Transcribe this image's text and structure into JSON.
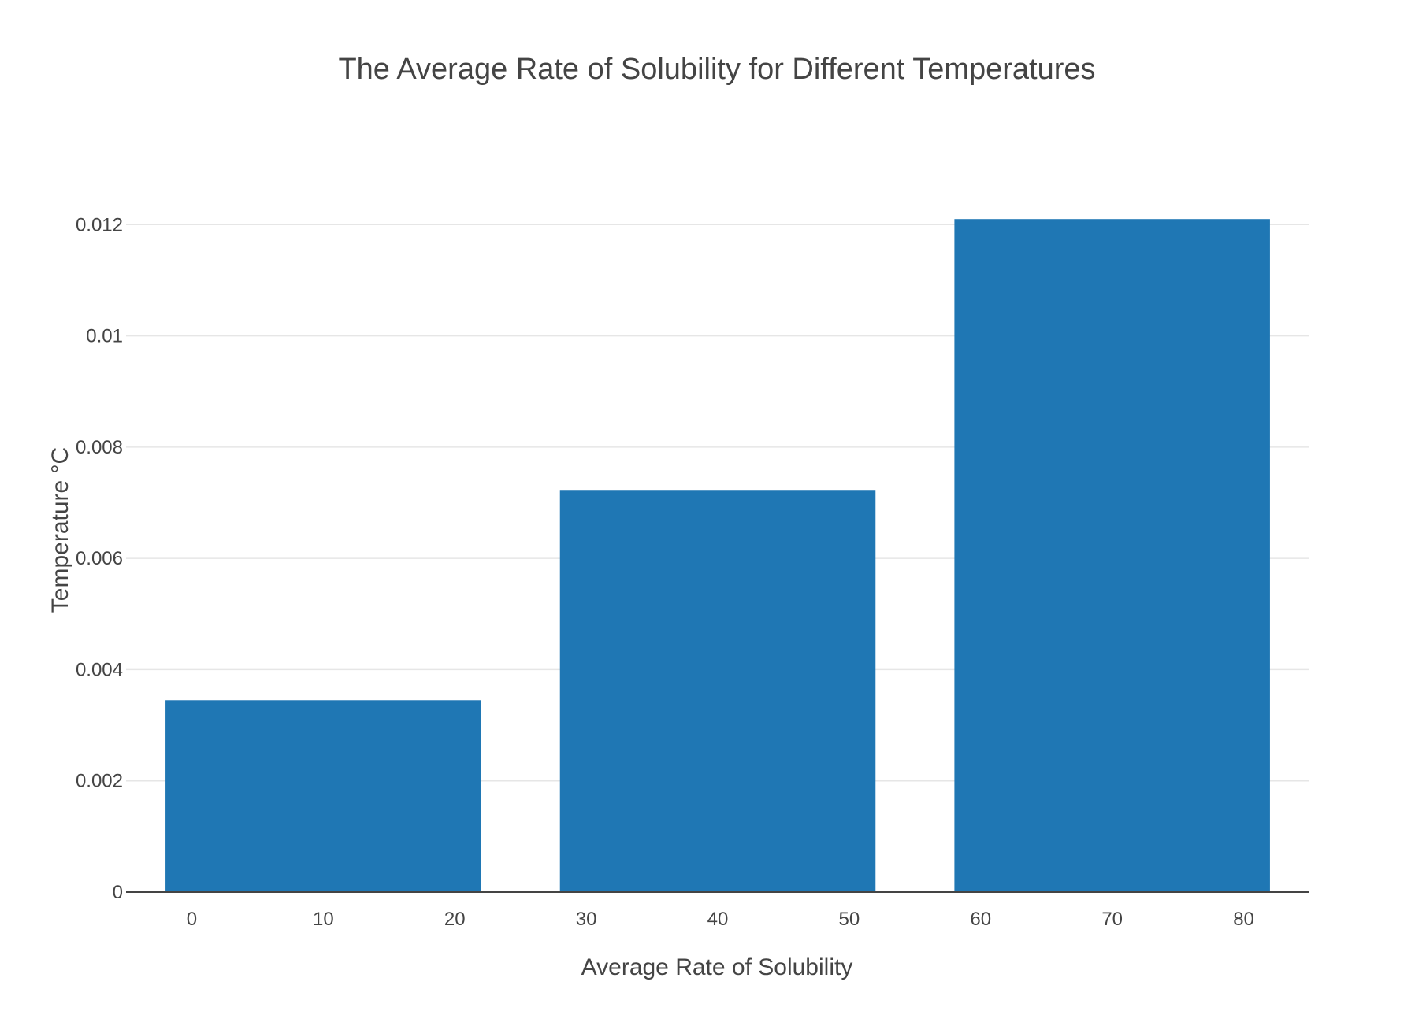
{
  "chart_data": {
    "type": "bar",
    "title": "The Average Rate of Solubility for Different Temperatures",
    "xlabel": "Average Rate of Solubility",
    "ylabel": "Temperature °C",
    "bars": [
      {
        "x_center": 10,
        "width": 24,
        "value": 0.00345
      },
      {
        "x_center": 40,
        "width": 24,
        "value": 0.00723
      },
      {
        "x_center": 70,
        "width": 24,
        "value": 0.0121
      }
    ],
    "xlim": [
      -5,
      85
    ],
    "ylim": [
      0,
      0.01274
    ],
    "x_ticks": [
      "0",
      "10",
      "20",
      "30",
      "40",
      "50",
      "60",
      "70",
      "80"
    ],
    "y_ticks": [
      "0",
      "0.002",
      "0.004",
      "0.006",
      "0.008",
      "0.01",
      "0.012"
    ],
    "grid": true,
    "colors": {
      "bar": "#1f77b4"
    }
  }
}
